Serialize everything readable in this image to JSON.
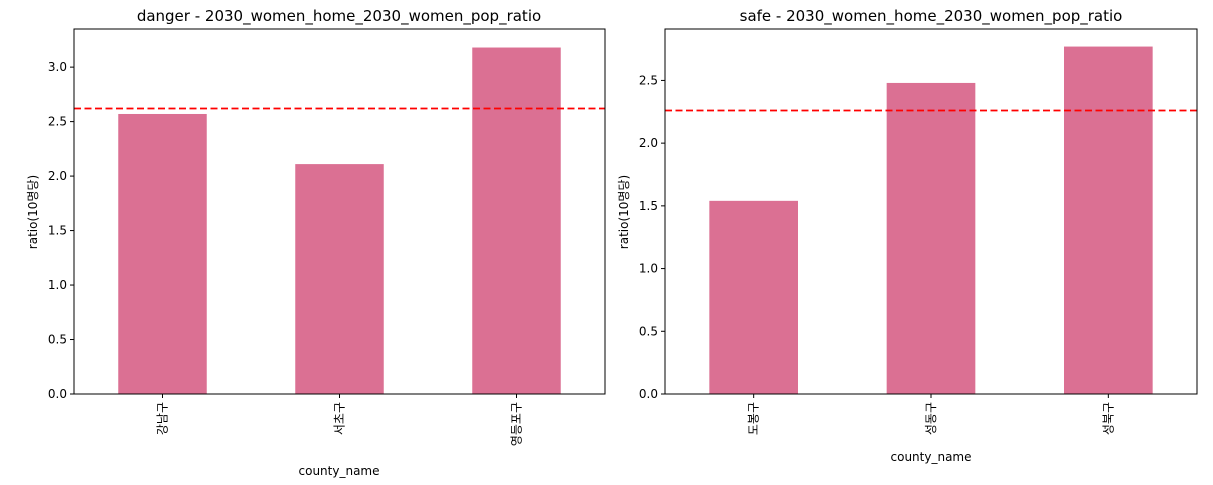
{
  "chart_data": [
    {
      "type": "bar",
      "title": "danger - 2030_women_home_2030_women_pop_ratio",
      "xlabel": "county_name",
      "ylabel": "ratio(10명당)",
      "categories": [
        "강남구",
        "서초구",
        "영등포구"
      ],
      "values": [
        2.57,
        2.11,
        3.18
      ],
      "ylim": [
        0,
        3.35
      ],
      "yticks": [
        0.0,
        0.5,
        1.0,
        1.5,
        2.0,
        2.5,
        3.0
      ],
      "ytick_labels": [
        "0.0",
        "0.5",
        "1.0",
        "1.5",
        "2.0",
        "2.5",
        "3.0"
      ],
      "reference_line": 2.62,
      "bar_color": "#db7093",
      "reference_line_color": "#ff0000",
      "grid": false
    },
    {
      "type": "bar",
      "title": "safe - 2030_women_home_2030_women_pop_ratio",
      "xlabel": "county_name",
      "ylabel": "ratio(10명당)",
      "categories": [
        "도봉구",
        "성동구",
        "성북구"
      ],
      "values": [
        1.54,
        2.48,
        2.77
      ],
      "ylim": [
        0,
        2.91
      ],
      "yticks": [
        0.0,
        0.5,
        1.0,
        1.5,
        2.0,
        2.5
      ],
      "ytick_labels": [
        "0.0",
        "0.5",
        "1.0",
        "1.5",
        "2.0",
        "2.5"
      ],
      "reference_line": 2.26,
      "bar_color": "#db7093",
      "reference_line_color": "#ff0000",
      "grid": false
    }
  ]
}
